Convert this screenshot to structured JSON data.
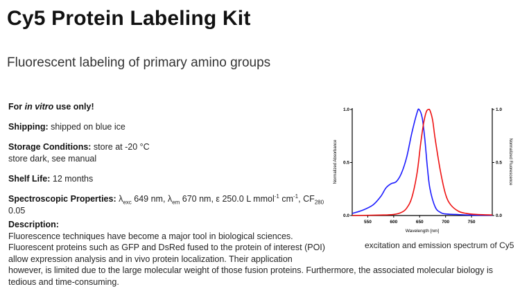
{
  "header": {
    "title": "Cy5 Protein Labeling Kit",
    "subtitle": "Fluorescent labeling of primary amino groups"
  },
  "properties": {
    "use_prefix": "For ",
    "use_italic": "in vitro",
    "use_suffix": " use only!",
    "shipping_label": "Shipping:",
    "shipping_value": " shipped on blue ice",
    "storage_label": "Storage Conditions:",
    "storage_value": " store at -20 °C",
    "storage_line2": "store dark, see manual",
    "shelf_label": "Shelf Life:",
    "shelf_value": " 12 months",
    "spectro_label": "Spectroscopic Properties:",
    "lambda": "λ",
    "exc_sub": "exc",
    "exc_value": " 649 nm, ",
    "em_sub": "em",
    "em_value": " 670 nm, ε 250.0 L mmol",
    "sup1": "-1",
    "cm_text": " cm",
    "sup2": "-1",
    "cf_text": ", CF",
    "cf_sub": "280",
    "cf_value": "0.05"
  },
  "description": {
    "label": "Description:",
    "line1": "Fluorescence techniques have become a major tool in biological sciences.",
    "line2": "Fluorescent proteins such as GFP and DsRed fused to the protein of interest (POI)",
    "line3": "allow expression analysis and in vivo protein localization. Their application",
    "line4": "however, is limited due to the large molecular weight of those fusion proteins. Furthermore, the associated molecular biology is",
    "line5": "tedious and time-consuming."
  },
  "figure": {
    "caption": "excitation and emission spectrum of Cy5"
  },
  "chart_data": {
    "type": "line",
    "xlabel": "Wavelength [nm]",
    "ylabel": "Normalized Absorbance",
    "y2label": "Normalized Fluorescence",
    "xlim": [
      520,
      790
    ],
    "ylim": [
      0,
      1.0
    ],
    "x_ticks": [
      "550",
      "600",
      "650",
      "700",
      "750"
    ],
    "y_ticks": [
      "0.0",
      "0.5",
      "1.0"
    ],
    "y2_ticks": [
      "0.0",
      "0.5",
      "1.0"
    ],
    "series": [
      {
        "color": "#1a1aff",
        "x": [
          520,
          540,
          560,
          575,
          585,
          595,
          605,
          615,
          625,
          635,
          645,
          649,
          655,
          660,
          665,
          670,
          680,
          690,
          700,
          720,
          740,
          760,
          790
        ],
        "values": [
          0.02,
          0.05,
          0.1,
          0.18,
          0.26,
          0.3,
          0.32,
          0.4,
          0.55,
          0.78,
          0.97,
          1.0,
          0.92,
          0.72,
          0.45,
          0.25,
          0.08,
          0.03,
          0.015,
          0.01,
          0.005,
          0.003,
          0.002
        ]
      },
      {
        "color": "#ee1111",
        "x": [
          520,
          580,
          600,
          615,
          625,
          635,
          645,
          652,
          658,
          663,
          667,
          670,
          675,
          680,
          690,
          700,
          710,
          725,
          740,
          760,
          790
        ],
        "values": [
          0.0,
          0.005,
          0.01,
          0.03,
          0.07,
          0.17,
          0.4,
          0.68,
          0.88,
          0.98,
          1.0,
          0.99,
          0.9,
          0.72,
          0.42,
          0.2,
          0.1,
          0.04,
          0.02,
          0.01,
          0.005
        ]
      }
    ]
  }
}
